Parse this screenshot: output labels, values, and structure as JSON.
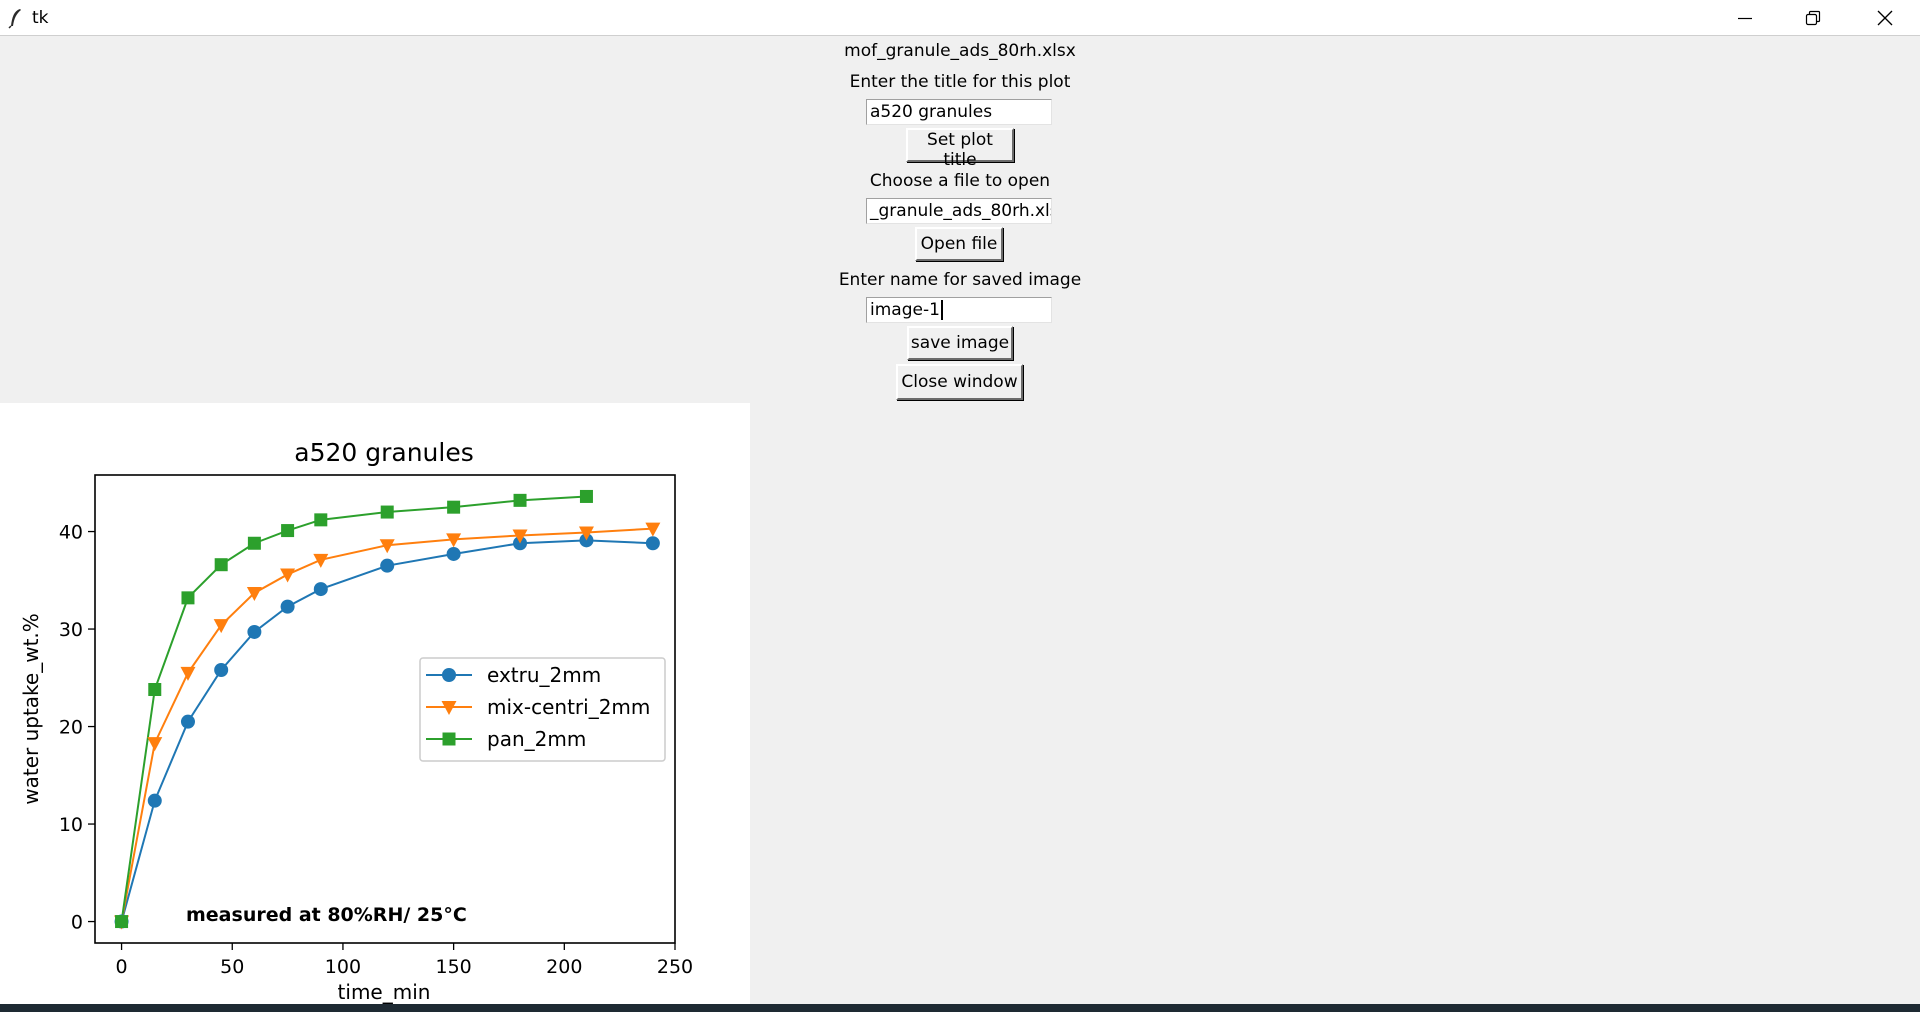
{
  "window": {
    "title": "tk",
    "minimize_icon": "minimize-icon",
    "restore_icon": "restore-icon",
    "close_icon": "close-icon"
  },
  "form": {
    "file_label": "mof_granule_ads_80rh.xlsx",
    "title_prompt": "Enter the title for this plot",
    "title_value": "a520 granules",
    "set_title_button": "Set plot title",
    "file_prompt": "Choose a file to open",
    "file_value": "_granule_ads_80rh.xlsx",
    "open_file_button": "Open file",
    "image_prompt": "Enter name for saved image",
    "image_value": "image-1",
    "save_image_button": "save image",
    "close_window_button": "Close window"
  },
  "chart_data": {
    "type": "line",
    "title": "a520 granules",
    "xlabel": "time_min",
    "ylabel": "water uptake_wt.%",
    "xlim": [
      -12,
      250
    ],
    "ylim": [
      -2.2,
      45.8
    ],
    "xticks": [
      0,
      50,
      100,
      150,
      200,
      250
    ],
    "yticks": [
      0,
      10,
      20,
      30,
      40
    ],
    "grid": false,
    "legend_position": "center-right",
    "annotation": "measured at 80%RH/ 25°C",
    "series": [
      {
        "name": "extru_2mm",
        "color": "#1f77b4",
        "marker": "circle",
        "x": [
          0,
          15,
          30,
          45,
          60,
          75,
          90,
          120,
          150,
          180,
          210,
          240
        ],
        "y": [
          0,
          12.4,
          20.5,
          25.8,
          29.7,
          32.3,
          34.1,
          36.5,
          37.7,
          38.8,
          39.1,
          38.8
        ]
      },
      {
        "name": "mix-centri_2mm",
        "color": "#ff7f0e",
        "marker": "triangle-down",
        "x": [
          0,
          15,
          30,
          45,
          60,
          75,
          90,
          120,
          150,
          180,
          210,
          240
        ],
        "y": [
          0,
          18.3,
          25.5,
          30.4,
          33.7,
          35.6,
          37.1,
          38.6,
          39.2,
          39.6,
          39.9,
          40.3
        ]
      },
      {
        "name": "pan_2mm",
        "color": "#2ca02c",
        "marker": "square",
        "x": [
          0,
          15,
          30,
          45,
          60,
          75,
          90,
          120,
          150,
          180,
          210
        ],
        "y": [
          0,
          23.8,
          33.2,
          36.6,
          38.8,
          40.1,
          41.2,
          42.0,
          42.5,
          43.2,
          43.6
        ]
      }
    ]
  }
}
